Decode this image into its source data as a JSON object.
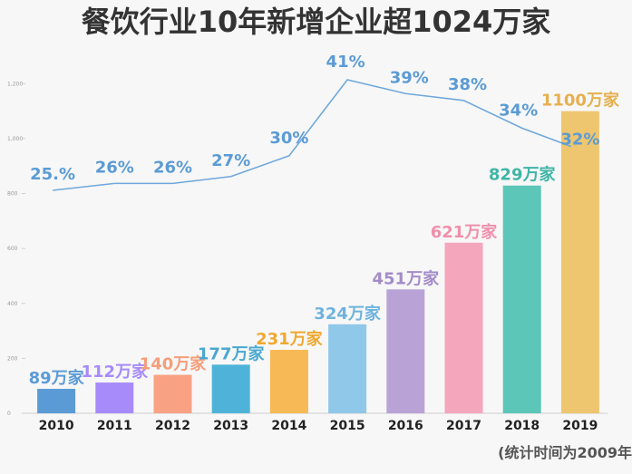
{
  "header": {
    "title": "餐饮行业10年新增企业超1024万家"
  },
  "footnote": "(统计时间为2009年",
  "colors": {
    "line": "#6fa8dc",
    "axis": "#cfcfcf",
    "rate_text": "#5b9bd5"
  },
  "chart_data": {
    "type": "bar",
    "categories": [
      "2010",
      "2011",
      "2012",
      "2013",
      "2014",
      "2015",
      "2016",
      "2017",
      "2018",
      "2019"
    ],
    "values": [
      89,
      112,
      140,
      177,
      231,
      324,
      451,
      621,
      829,
      1100
    ],
    "value_labels": [
      "89万家",
      "112万家",
      "140万家",
      "177万家",
      "231万家",
      "324万家",
      "451万家",
      "621万家",
      "829万家",
      "1100万家"
    ],
    "bar_colors": [
      "#5b9bd5",
      "#a78bfa",
      "#f9a183",
      "#4fb3d9",
      "#f7b955",
      "#8fc8e8",
      "#b9a3d6",
      "#f4a6bd",
      "#5cc6b8",
      "#eec66f"
    ],
    "label_colors": [
      "#5b9bd5",
      "#a78bfa",
      "#f59e7a",
      "#4aa8d0",
      "#f0a830",
      "#6fb3dd",
      "#a48cc9",
      "#ef8fab",
      "#3fb5a6",
      "#e6b04f"
    ],
    "ylim": [
      0,
      1300
    ],
    "yticks": [
      0,
      200,
      400,
      600,
      800,
      1000,
      1200
    ],
    "ytick_labels": [
      "0",
      "200",
      "400",
      "600",
      "800",
      "1,000",
      "1,200"
    ],
    "grid": false,
    "line_series": {
      "values": [
        25,
        26,
        26,
        27,
        30,
        41,
        39,
        38,
        34,
        32
      ],
      "labels": [
        "25.%",
        "26%",
        "26%",
        "27%",
        "30%",
        "41%",
        "39%",
        "38%",
        "34%",
        "32%"
      ]
    }
  }
}
